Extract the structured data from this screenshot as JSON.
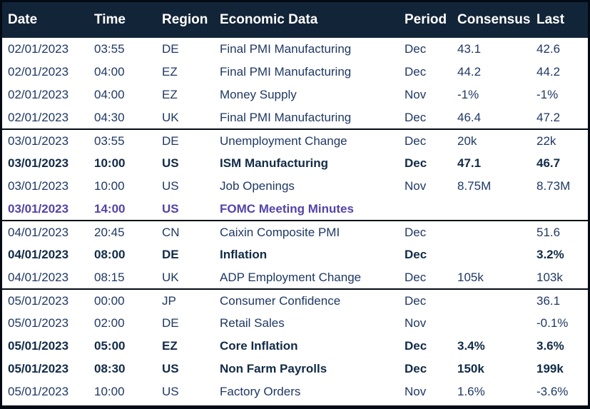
{
  "table": {
    "columns": [
      {
        "key": "date",
        "label": "Date"
      },
      {
        "key": "time",
        "label": "Time"
      },
      {
        "key": "region",
        "label": "Region"
      },
      {
        "key": "event",
        "label": "Economic Data"
      },
      {
        "key": "period",
        "label": "Period"
      },
      {
        "key": "consensus",
        "label": "Consensus"
      },
      {
        "key": "last",
        "label": "Last"
      }
    ],
    "rows": [
      {
        "date": "02/01/2023",
        "time": "03:55",
        "region": "DE",
        "event": "Final PMI Manufacturing",
        "period": "Dec",
        "consensus": "43.1",
        "last": "42.6",
        "style": "normal",
        "group_start": false
      },
      {
        "date": "02/01/2023",
        "time": "04:00",
        "region": "EZ",
        "event": "Final PMI Manufacturing",
        "period": "Dec",
        "consensus": "44.2",
        "last": "44.2",
        "style": "normal",
        "group_start": false
      },
      {
        "date": "02/01/2023",
        "time": "04:00",
        "region": "EZ",
        "event": "Money Supply",
        "period": "Nov",
        "consensus": "-1%",
        "last": "-1%",
        "style": "normal",
        "group_start": false
      },
      {
        "date": "02/01/2023",
        "time": "04:30",
        "region": "UK",
        "event": "Final PMI Manufacturing",
        "period": "Dec",
        "consensus": "46.4",
        "last": "47.2",
        "style": "normal",
        "group_start": false
      },
      {
        "date": "03/01/2023",
        "time": "03:55",
        "region": "DE",
        "event": "Unemployment Change",
        "period": "Dec",
        "consensus": "20k",
        "last": "22k",
        "style": "normal",
        "group_start": true
      },
      {
        "date": "03/01/2023",
        "time": "10:00",
        "region": "US",
        "event": "ISM Manufacturing",
        "period": "Dec",
        "consensus": "47.1",
        "last": "46.7",
        "style": "bold",
        "group_start": false
      },
      {
        "date": "03/01/2023",
        "time": "10:00",
        "region": "US",
        "event": "Job Openings",
        "period": "Nov",
        "consensus": "8.75M",
        "last": "8.73M",
        "style": "normal",
        "group_start": false
      },
      {
        "date": "03/01/2023",
        "time": "14:00",
        "region": "US",
        "event": "FOMC Meeting Minutes",
        "period": "",
        "consensus": "",
        "last": "",
        "style": "purple",
        "group_start": false
      },
      {
        "date": "04/01/2023",
        "time": "20:45",
        "region": "CN",
        "event": "Caixin Composite PMI",
        "period": "Dec",
        "consensus": "",
        "last": "51.6",
        "style": "normal",
        "group_start": true
      },
      {
        "date": "04/01/2023",
        "time": "08:00",
        "region": "DE",
        "event": "Inflation",
        "period": "Dec",
        "consensus": "",
        "last": "3.2%",
        "style": "bold",
        "group_start": false
      },
      {
        "date": "04/01/2023",
        "time": "08:15",
        "region": "UK",
        "event": "ADP Employment Change",
        "period": "Dec",
        "consensus": "105k",
        "last": "103k",
        "style": "normal",
        "group_start": false
      },
      {
        "date": "05/01/2023",
        "time": "00:00",
        "region": "JP",
        "event": "Consumer Confidence",
        "period": "Dec",
        "consensus": "",
        "last": "36.1",
        "style": "normal",
        "group_start": true
      },
      {
        "date": "05/01/2023",
        "time": "02:00",
        "region": "DE",
        "event": "Retail Sales",
        "period": "Nov",
        "consensus": "",
        "last": "-0.1%",
        "style": "normal",
        "group_start": false
      },
      {
        "date": "05/01/2023",
        "time": "05:00",
        "region": "EZ",
        "event": "Core Inflation",
        "period": "Dec",
        "consensus": "3.4%",
        "last": "3.6%",
        "style": "bold",
        "group_start": false
      },
      {
        "date": "05/01/2023",
        "time": "08:30",
        "region": "US",
        "event": "Non Farm Payrolls",
        "period": "Dec",
        "consensus": "150k",
        "last": "199k",
        "style": "bold",
        "group_start": false
      },
      {
        "date": "05/01/2023",
        "time": "10:00",
        "region": "US",
        "event": "Factory Orders",
        "period": "Nov",
        "consensus": "1.6%",
        "last": "-3.6%",
        "style": "normal",
        "group_start": false
      }
    ]
  },
  "colors": {
    "header_bg": "#122438",
    "header_text": "#FFFFFF",
    "text": "#1F3864",
    "bold_text": "#122B47",
    "highlight_purple": "#5443A8",
    "border": "#020A14"
  }
}
